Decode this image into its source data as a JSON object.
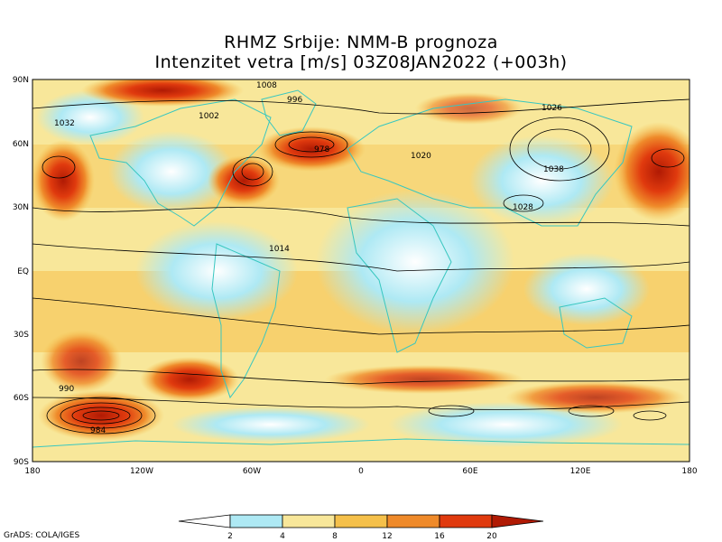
{
  "title": {
    "line1": "RHMZ Srbije: NMM-B prognoza",
    "line2": "Intenzitet vetra [m/s] 03Z08JAN2022 (+003h)"
  },
  "axes": {
    "lat_labels": [
      "90N",
      "60N",
      "30N",
      "EQ",
      "30S",
      "60S",
      "90S"
    ],
    "lon_labels": [
      "180",
      "120W",
      "60W",
      "0",
      "60E",
      "120E",
      "180"
    ]
  },
  "colorbar": {
    "ticks": [
      "2",
      "4",
      "8",
      "12",
      "16",
      "20"
    ],
    "colors": [
      "#ffffff",
      "#aee9f4",
      "#f8e79a",
      "#f5c04a",
      "#ef8a2a",
      "#e03a0e",
      "#b01a04"
    ]
  },
  "isobar_labels": [
    "1008",
    "996",
    "1002",
    "1032",
    "1026",
    "1020",
    "1014",
    "978",
    "1038",
    "990",
    "984",
    "1028"
  ],
  "credit": "GrADS: COLA/IGES"
}
